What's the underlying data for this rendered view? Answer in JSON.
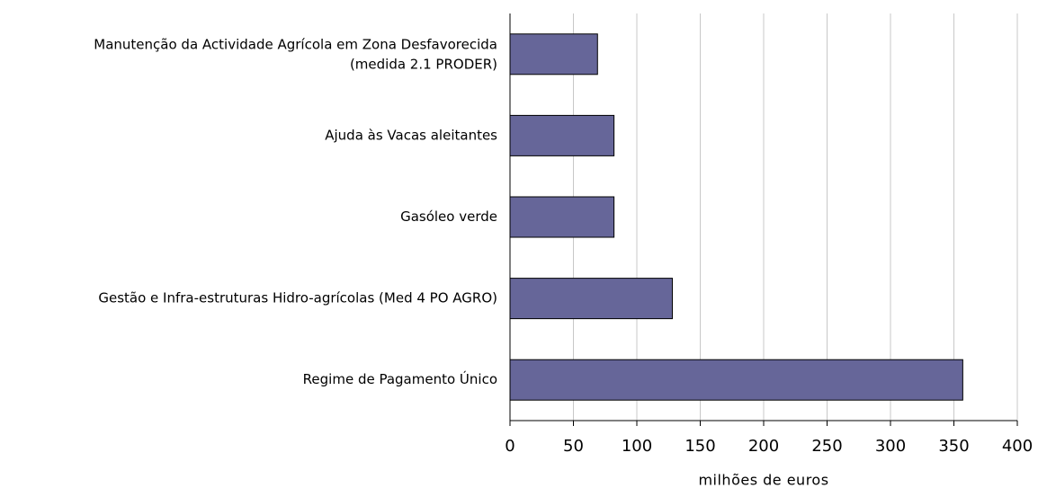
{
  "chart_data": {
    "type": "barh",
    "categories": [
      "Manutenção da Actividade Agrícola em Zona Desfavorecida\n(medida 2.1 PRODER)",
      "Ajuda às Vacas aleitantes",
      "Gasóleo verde",
      "Gestão e Infra-estruturas Hidro-agrícolas (Med 4 PO AGRO)",
      "Regime de Pagamento Único"
    ],
    "values": [
      69,
      82,
      82,
      128,
      357
    ],
    "color": "#666699",
    "xlabel": "milhões de euros",
    "xlim": [
      0,
      400
    ],
    "xticks": [
      0,
      50,
      100,
      150,
      200,
      250,
      300,
      350,
      400
    ],
    "grid": true
  }
}
